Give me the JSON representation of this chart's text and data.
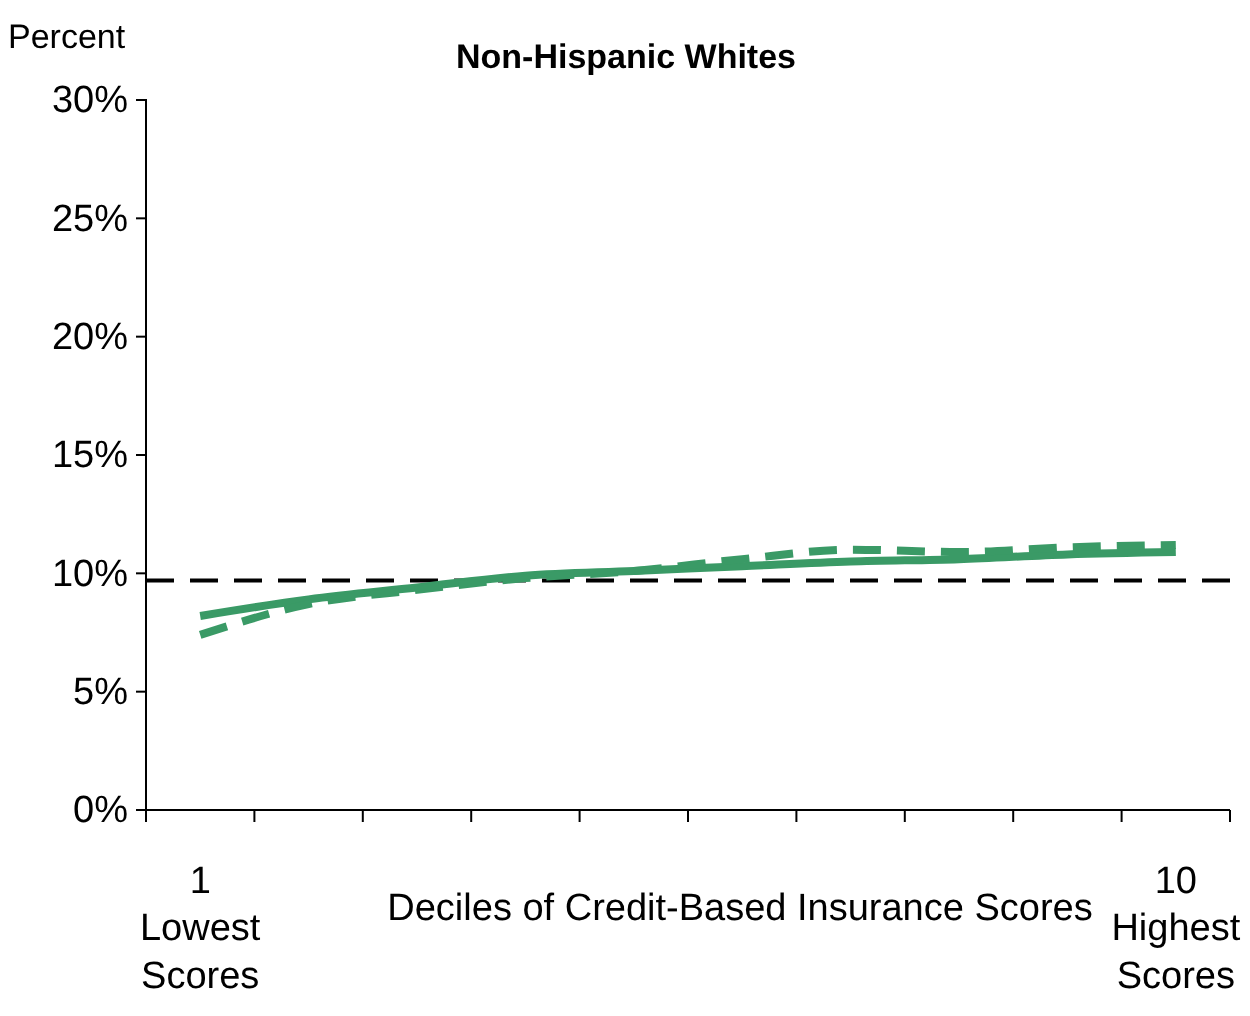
{
  "chart_data": {
    "type": "line",
    "title": "Non-Hispanic Whites",
    "ylabel": "Percent",
    "xlabel": "Deciles of Credit-Based Insurance Scores",
    "categories": [
      "1",
      null,
      null,
      null,
      null,
      null,
      null,
      null,
      null,
      "10"
    ],
    "ylim": [
      0,
      30
    ],
    "yticks": [
      {
        "value": 0,
        "label": "0%"
      },
      {
        "value": 5,
        "label": "5%"
      },
      {
        "value": 10,
        "label": "10%"
      },
      {
        "value": 15,
        "label": "15%"
      },
      {
        "value": 20,
        "label": "20%"
      },
      {
        "value": 25,
        "label": "25%"
      },
      {
        "value": 30,
        "label": "30%"
      }
    ],
    "series": [
      {
        "color": "#3a9a66",
        "line_style": "solid",
        "values": [
          8.2,
          8.9,
          9.4,
          9.9,
          10.1,
          10.3,
          10.5,
          10.6,
          10.8,
          10.9
        ]
      },
      {
        "color": "#3a9a66",
        "line_style": "dashed",
        "values": [
          7.4,
          8.7,
          9.3,
          9.8,
          10.1,
          10.6,
          11.0,
          10.9,
          11.1,
          11.2
        ]
      }
    ],
    "ref_lines": [
      {
        "axis": "y",
        "value": 9.7,
        "label": null,
        "color": "#000000",
        "line_style": "dashed"
      }
    ],
    "annotations": [
      "Lowest Scores",
      "Highest Scores"
    ],
    "grid": false,
    "marker": "none"
  }
}
